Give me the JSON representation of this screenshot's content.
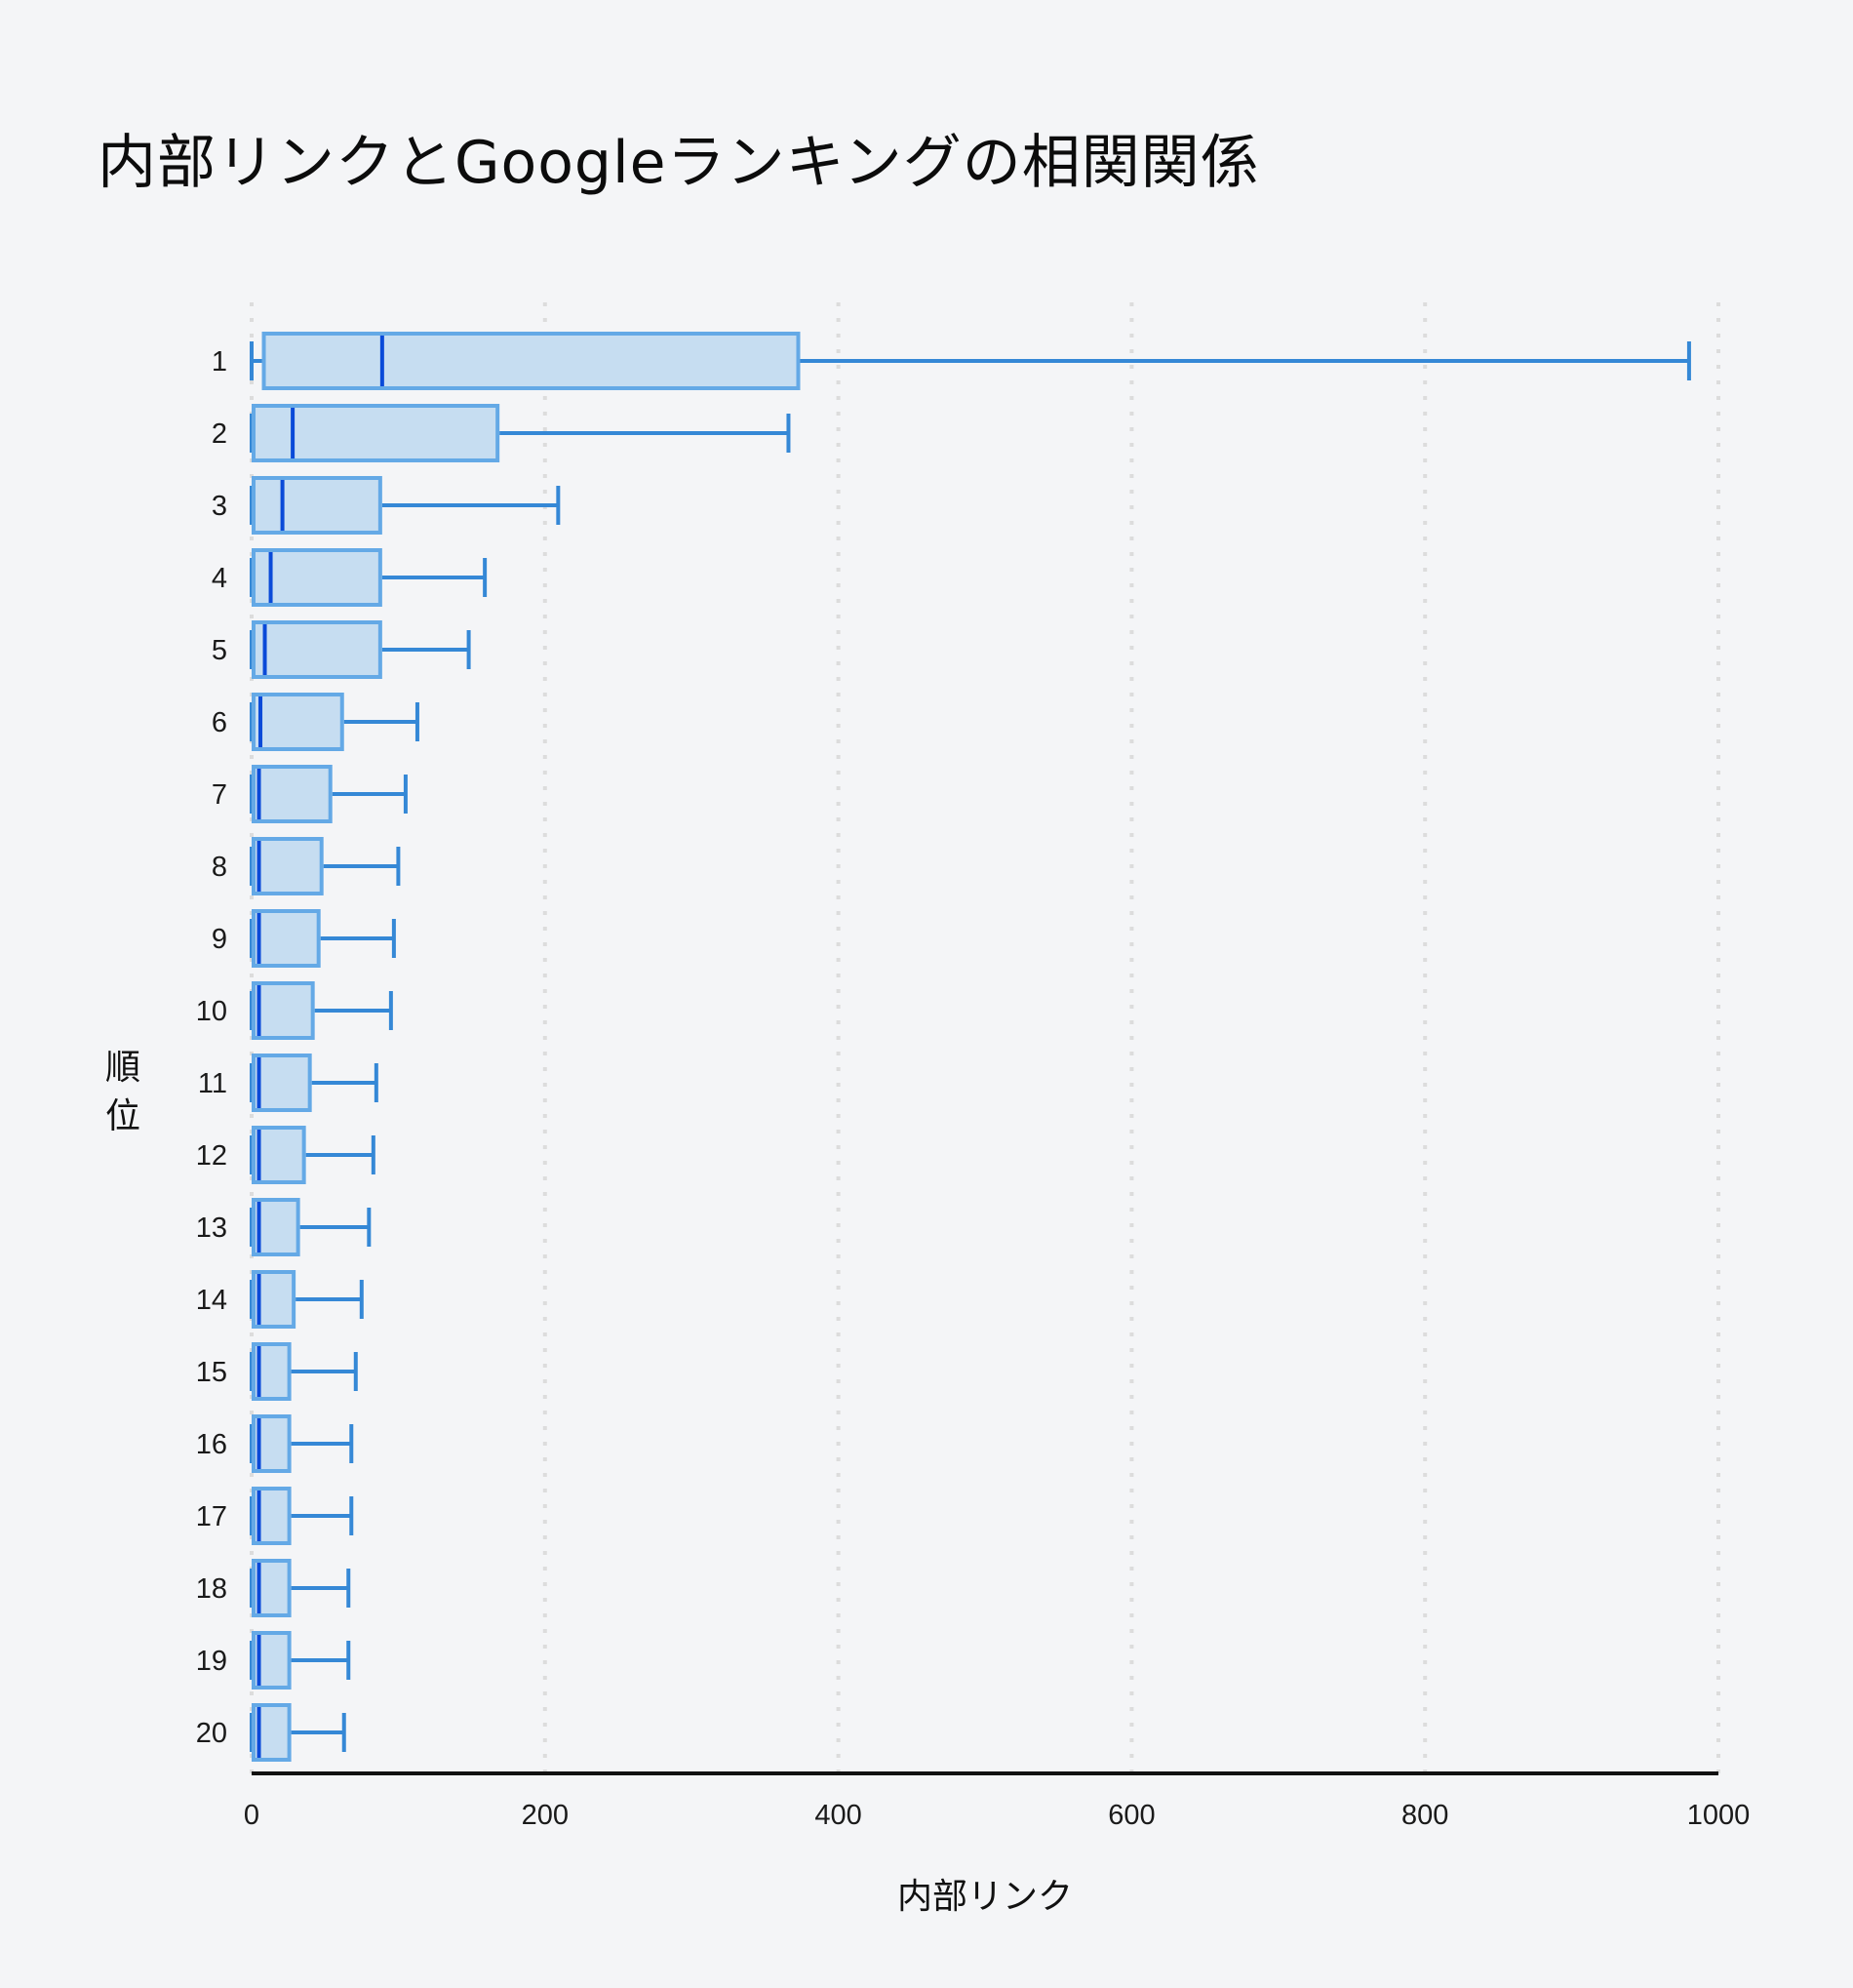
{
  "title": "内部リンクとGoogleランキングの相関関係",
  "colors": {
    "background": "#f4f5f7",
    "box_fill": "#c6ddf1",
    "box_border": "#64a9e6",
    "median": "#0a4ad8",
    "whisker": "#3588d6",
    "grid": "#dcdcdc",
    "axis": "#111111"
  },
  "chart_data": {
    "type": "box",
    "orientation": "horizontal",
    "title": "内部リンクとGoogleランキングの相関関係",
    "xlabel": "内部リンク",
    "ylabel": "順位",
    "xlim": [
      0,
      1000
    ],
    "xticks": [
      0,
      200,
      400,
      600,
      800,
      1000
    ],
    "grid": "vertical dotted",
    "categories": [
      "1",
      "2",
      "3",
      "4",
      "5",
      "6",
      "7",
      "8",
      "9",
      "10",
      "11",
      "12",
      "13",
      "14",
      "15",
      "16",
      "17",
      "18",
      "19",
      "20"
    ],
    "boxes": [
      {
        "rank": "1",
        "min": 0,
        "q1": 7,
        "median": 89,
        "q3": 374,
        "max": 980
      },
      {
        "rank": "2",
        "min": 0,
        "q1": 0,
        "median": 28,
        "q3": 169,
        "max": 366
      },
      {
        "rank": "3",
        "min": 0,
        "q1": 0,
        "median": 21,
        "q3": 89,
        "max": 209
      },
      {
        "rank": "4",
        "min": 0,
        "q1": 0,
        "median": 13,
        "q3": 89,
        "max": 159
      },
      {
        "rank": "5",
        "min": 0,
        "q1": 0,
        "median": 9,
        "q3": 89,
        "max": 148
      },
      {
        "rank": "6",
        "min": 0,
        "q1": 0,
        "median": 6,
        "q3": 63,
        "max": 113
      },
      {
        "rank": "7",
        "min": 0,
        "q1": 0,
        "median": 5,
        "q3": 55,
        "max": 105
      },
      {
        "rank": "8",
        "min": 0,
        "q1": 0,
        "median": 5,
        "q3": 49,
        "max": 100
      },
      {
        "rank": "9",
        "min": 0,
        "q1": 0,
        "median": 5,
        "q3": 47,
        "max": 97
      },
      {
        "rank": "10",
        "min": 0,
        "q1": 0,
        "median": 5,
        "q3": 43,
        "max": 95
      },
      {
        "rank": "11",
        "min": 0,
        "q1": 0,
        "median": 5,
        "q3": 41,
        "max": 85
      },
      {
        "rank": "12",
        "min": 0,
        "q1": 0,
        "median": 5,
        "q3": 37,
        "max": 83
      },
      {
        "rank": "13",
        "min": 0,
        "q1": 0,
        "median": 5,
        "q3": 33,
        "max": 80
      },
      {
        "rank": "14",
        "min": 0,
        "q1": 0,
        "median": 5,
        "q3": 30,
        "max": 75
      },
      {
        "rank": "15",
        "min": 0,
        "q1": 0,
        "median": 5,
        "q3": 27,
        "max": 71
      },
      {
        "rank": "16",
        "min": 0,
        "q1": 0,
        "median": 5,
        "q3": 27,
        "max": 68
      },
      {
        "rank": "17",
        "min": 0,
        "q1": 0,
        "median": 5,
        "q3": 27,
        "max": 68
      },
      {
        "rank": "18",
        "min": 0,
        "q1": 0,
        "median": 5,
        "q3": 27,
        "max": 66
      },
      {
        "rank": "19",
        "min": 0,
        "q1": 0,
        "median": 5,
        "q3": 27,
        "max": 66
      },
      {
        "rank": "20",
        "min": 0,
        "q1": 0,
        "median": 5,
        "q3": 27,
        "max": 63
      }
    ]
  }
}
